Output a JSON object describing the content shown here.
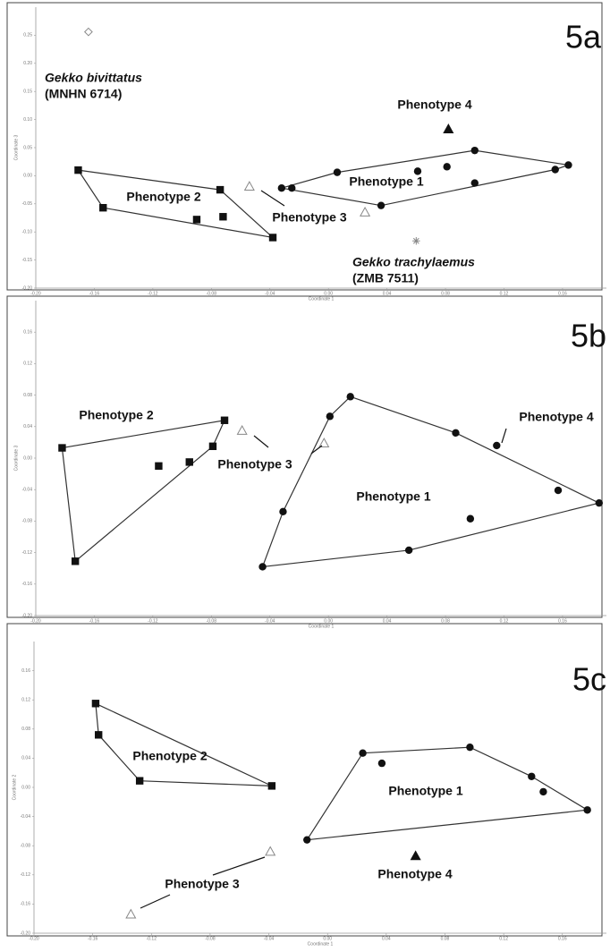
{
  "chart_data": [
    {
      "type": "scatter",
      "title": "5a",
      "x_label": "Coordinate 1",
      "y_label": "Coordinate 3",
      "xlim": [
        -0.2,
        0.19
      ],
      "ylim": [
        -0.2,
        0.3
      ],
      "xticks": [
        {
          "value": -0.2,
          "label": "-0.20"
        },
        -0.16,
        -0.12,
        -0.08,
        -0.04,
        {
          "value": 0,
          "label": "0.00"
        },
        0.04,
        0.08,
        0.12,
        0.16
      ],
      "yticks": [
        0.25,
        {
          "value": 0.2,
          "label": "0.20"
        },
        0.15,
        {
          "value": 0.1,
          "label": "0.10"
        },
        0.05,
        {
          "value": 0,
          "label": "0.00"
        },
        -0.05,
        {
          "value": -0.1,
          "label": "-0.10"
        },
        -0.15,
        {
          "value": -0.2,
          "label": "-0.20"
        }
      ],
      "series": [
        {
          "name": "Phenotype 1",
          "marker": "circle",
          "color": "#111111",
          "hull": true,
          "x": [
            -0.032,
            -0.025,
            0.006,
            0.036,
            0.061,
            0.081,
            0.1,
            0.1,
            0.155,
            0.164
          ],
          "values": [
            -0.022,
            -0.022,
            0.006,
            -0.053,
            0.008,
            0.016,
            0.045,
            -0.013,
            0.011,
            0.019
          ]
        },
        {
          "name": "Phenotype 2",
          "marker": "square",
          "color": "#111111",
          "hull": true,
          "x": [
            -0.171,
            -0.154,
            -0.09,
            -0.072,
            -0.074,
            -0.038
          ],
          "values": [
            0.01,
            -0.057,
            -0.078,
            -0.073,
            -0.025,
            -0.11
          ]
        },
        {
          "name": "Phenotype 3",
          "marker": "open-triangle",
          "color": "#888888",
          "x": [
            -0.054,
            0.025
          ],
          "values": [
            -0.019,
            -0.065
          ]
        },
        {
          "name": "Phenotype 4",
          "marker": "triangle",
          "color": "#111111",
          "x": [
            0.082
          ],
          "values": [
            0.083
          ]
        },
        {
          "name": "Gekko bivittatus",
          "specimen": "(MNHN 6714)",
          "marker": "diamond",
          "color": "#888888",
          "x": [
            -0.164
          ],
          "values": [
            0.256
          ]
        },
        {
          "name": "Gekko trachylaemus",
          "specimen": "(ZMB 7511)",
          "marker": "asterisk",
          "color": "#888888",
          "x": [
            0.06
          ],
          "values": [
            -0.116
          ]
        }
      ]
    },
    {
      "type": "scatter",
      "title": "5b",
      "x_label": "Coordinate 1",
      "y_label": "Coordinate 3",
      "xlim": [
        -0.2,
        0.19
      ],
      "ylim": [
        -0.2,
        0.2
      ],
      "xticks": [
        {
          "value": -0.2,
          "label": "-0.20"
        },
        -0.16,
        -0.12,
        -0.08,
        -0.04,
        {
          "value": 0,
          "label": "0.00"
        },
        0.04,
        0.08,
        0.12,
        0.16
      ],
      "yticks": [
        0.16,
        0.12,
        0.08,
        0.04,
        {
          "value": 0,
          "label": "0.00"
        },
        -0.04,
        -0.08,
        -0.12,
        -0.16,
        {
          "value": -0.2,
          "label": "-0.20"
        }
      ],
      "series": [
        {
          "name": "Phenotype 1",
          "marker": "circle",
          "color": "#111111",
          "hull": true,
          "x": [
            -0.045,
            -0.031,
            0.001,
            0.015,
            0.055,
            0.087,
            0.097,
            0.157,
            0.185
          ],
          "values": [
            -0.138,
            -0.068,
            0.053,
            0.078,
            -0.117,
            0.032,
            -0.077,
            -0.041,
            -0.057
          ]
        },
        {
          "name": "Phenotype 2",
          "marker": "square",
          "color": "#111111",
          "hull": true,
          "x": [
            -0.182,
            -0.173,
            -0.116,
            -0.095,
            -0.079,
            -0.071
          ],
          "values": [
            0.013,
            -0.131,
            -0.01,
            -0.005,
            0.015,
            0.048
          ]
        },
        {
          "name": "Phenotype 3",
          "marker": "open-triangle",
          "color": "#888888",
          "x": [
            -0.059,
            -0.003
          ],
          "values": [
            0.035,
            0.019
          ]
        },
        {
          "name": "Phenotype 4",
          "marker": "circle",
          "color": "#111111",
          "x": [
            0.115
          ],
          "values": [
            0.016
          ]
        }
      ]
    },
    {
      "type": "scatter",
      "title": "5c",
      "x_label": "Coordinate 1",
      "y_label": "Coordinate 2",
      "xlim": [
        -0.2,
        0.19
      ],
      "ylim": [
        -0.2,
        0.2
      ],
      "xticks": [
        {
          "value": -0.2,
          "label": "-0.20"
        },
        -0.16,
        -0.12,
        -0.08,
        -0.04,
        {
          "value": 0,
          "label": "0.00"
        },
        0.04,
        0.08,
        0.12,
        0.16
      ],
      "yticks": [
        0.16,
        0.12,
        0.08,
        0.04,
        {
          "value": 0,
          "label": "0.00"
        },
        -0.04,
        -0.08,
        -0.12,
        -0.16,
        {
          "value": -0.2,
          "label": "-0.20"
        }
      ],
      "series": [
        {
          "name": "Phenotype 1",
          "marker": "circle",
          "color": "#111111",
          "hull": true,
          "x": [
            -0.014,
            0.024,
            0.037,
            0.097,
            0.139,
            0.147,
            0.177
          ],
          "values": [
            -0.072,
            0.047,
            0.033,
            0.055,
            0.015,
            -0.006,
            -0.031
          ]
        },
        {
          "name": "Phenotype 2",
          "marker": "square",
          "color": "#111111",
          "hull": true,
          "x": [
            -0.158,
            -0.156,
            -0.128,
            -0.038
          ],
          "values": [
            0.115,
            0.072,
            0.009,
            0.002
          ]
        },
        {
          "name": "Phenotype 3",
          "marker": "open-triangle",
          "color": "#888888",
          "x": [
            -0.039,
            -0.134
          ],
          "values": [
            -0.088,
            -0.174
          ]
        },
        {
          "name": "Phenotype 4",
          "marker": "triangle",
          "color": "#111111",
          "x": [
            0.06
          ],
          "values": [
            -0.094
          ]
        }
      ]
    }
  ]
}
